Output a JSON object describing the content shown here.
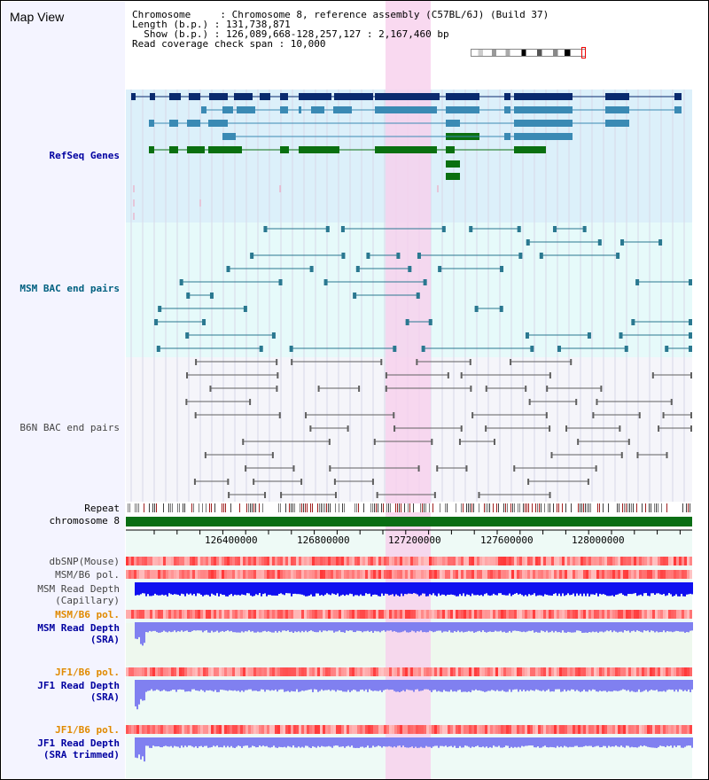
{
  "title": "Map View",
  "info": {
    "line1": "Chromosome     : Chromosome 8, reference assembly (C57BL/6J) (Build 37)",
    "line2": "Length (b.p.) : 131,738,871",
    "line3": "  Show (b.p.) : 126,089,668-128,257,127 : 2,167,460 bp",
    "line4": "Read coverage check span : 10,000"
  },
  "tracks": {
    "refseq": "RefSeq Genes",
    "msm_bac": "MSM BAC end pairs",
    "b6n_bac": "B6N BAC end pairs",
    "repeat": "Repeat",
    "chrom": "chromosome 8",
    "dbsnp": "dbSNP(Mouse)",
    "msm_pol": "MSM/B6 pol.",
    "msm_depth_cap_1": "MSM Read Depth",
    "msm_depth_cap_2": "(Capillary)",
    "msm_pol2": "MSM/B6 pol.",
    "msm_depth_sra_1": "MSM Read Depth",
    "msm_depth_sra_2": "(SRA)",
    "jf1_pol": "JF1/B6 pol.",
    "jf1_depth_1": "JF1 Read Depth",
    "jf1_depth_2": "(SRA)",
    "jf1_pol2": "JF1/B6 pol.",
    "jf1_trim_1": "JF1 Read Depth",
    "jf1_trim_2": "(SRA trimmed)"
  },
  "axis": {
    "ticks": [
      "126400000",
      "126800000",
      "127200000",
      "127600000",
      "128000000"
    ]
  },
  "colors": {
    "refseq_bg": "#dcf0fa",
    "msm_bg": "#e6fafa",
    "b6n_bg": "#f5f5fa",
    "highlight": "#f8d0ec",
    "chrom_green": "#0a6e14",
    "gene_navy": "#0a2a6e",
    "gene_steel": "#3a8ab4",
    "gene_green": "#0a7010",
    "bac_teal": "#2a7890",
    "bac_gray": "#606060",
    "depth_blue": "#1010f0",
    "depth_light": "#8080f0"
  }
}
